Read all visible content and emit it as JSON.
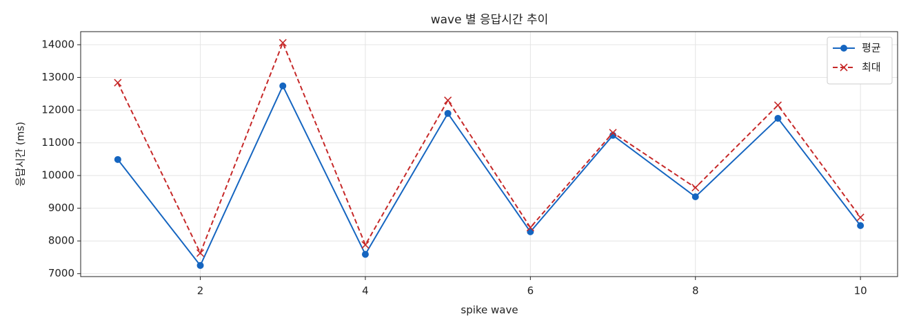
{
  "chart_data": {
    "type": "line",
    "title": "wave 별 응답시간 추이",
    "x_label": "spike wave",
    "y_label": "응답시간 (ms)",
    "x": [
      1,
      2,
      3,
      4,
      5,
      6,
      7,
      8,
      9,
      10
    ],
    "series": [
      {
        "name": "평균",
        "color": "#1565c0",
        "marker": "circle",
        "dash": "solid",
        "values": [
          10490,
          7250,
          12740,
          7590,
          11900,
          8280,
          11230,
          9350,
          11750,
          8470
        ]
      },
      {
        "name": "최대",
        "color": "#c62828",
        "marker": "x",
        "dash": "dashed",
        "values": [
          12840,
          7630,
          14060,
          7880,
          12300,
          8410,
          11310,
          9630,
          12150,
          8720
        ]
      }
    ],
    "xlim": [
      0.55,
      10.45
    ],
    "xticks": [
      2,
      4,
      6,
      8,
      10
    ],
    "ylim": [
      6910,
      14400
    ],
    "yticks": [
      7000,
      8000,
      9000,
      10000,
      11000,
      12000,
      13000,
      14000
    ],
    "grid": true,
    "legend": "upper right"
  }
}
